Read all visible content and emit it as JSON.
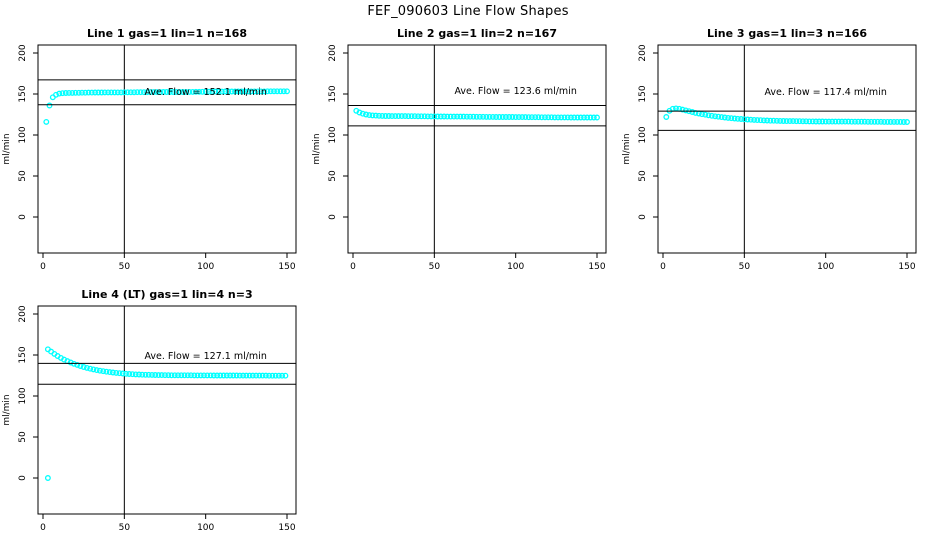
{
  "page_title": "FEF_090603  Line Flow Shapes",
  "colors": {
    "points": "#00FFFF",
    "axis": "#000000",
    "background": "#FFFFFF"
  },
  "chart_data": [
    {
      "type": "scatter",
      "title": "Line 1 gas=1 lin=1 n=168",
      "ylabel": "ml/min",
      "x_ticks": [
        0,
        50,
        100,
        150
      ],
      "y_ticks": [
        0,
        50,
        100,
        150,
        200
      ],
      "xlim": [
        -3,
        155
      ],
      "ylim": [
        0,
        210
      ],
      "vline_x": 50,
      "hlines": [
        167.3,
        136.9
      ],
      "ave_flow": 152.1,
      "ave_flow_label": "Ave. Flow =  152.1  ml/min",
      "label_pos": [
        100,
        152.5
      ],
      "series": {
        "x_start": 2,
        "x_step": 2,
        "values": [
          116,
          136,
          146,
          149,
          150.5,
          151,
          151.2,
          151.3,
          151.4,
          151.5,
          151.5,
          151.6,
          151.6,
          151.7,
          151.7,
          151.8,
          151.8,
          151.8,
          151.9,
          151.9,
          151.9,
          152,
          152,
          152,
          152.1,
          152.1,
          152.1,
          152.1,
          152.2,
          152.2,
          152.2,
          152.2,
          152.3,
          152.3,
          152.3,
          152.3,
          152.4,
          152.4,
          152.4,
          152.5,
          152.5,
          152.5,
          152.5,
          152.6,
          152.6,
          152.6,
          152.7,
          152.7,
          152.7,
          152.8,
          152.8,
          152.8,
          152.9,
          152.9,
          152.9,
          153,
          153,
          153,
          153,
          153.1,
          153.1,
          153.1,
          153.1,
          153.2,
          153.2,
          153.2,
          153.2,
          153.2,
          153.3,
          153.3,
          153.3,
          153.3,
          153.3,
          153.3,
          153.3
        ]
      },
      "extra_points": []
    },
    {
      "type": "scatter",
      "title": "Line 2 gas=1 lin=2 n=167",
      "ylabel": "ml/min",
      "x_ticks": [
        0,
        50,
        100,
        150
      ],
      "y_ticks": [
        0,
        50,
        100,
        150,
        200
      ],
      "xlim": [
        -3,
        155
      ],
      "ylim": [
        0,
        210
      ],
      "vline_x": 50,
      "hlines": [
        136.0,
        111.2
      ],
      "ave_flow": 123.6,
      "ave_flow_label": "Ave. Flow =  123.6  ml/min",
      "label_pos": [
        100,
        153.5
      ],
      "series": {
        "x_start": 2,
        "x_step": 2,
        "values": [
          129.5,
          127.5,
          126,
          125,
          124.3,
          123.9,
          123.6,
          123.4,
          123.3,
          123.2,
          123.2,
          123.1,
          123.1,
          123,
          123,
          123,
          122.9,
          122.9,
          122.9,
          122.8,
          122.8,
          122.8,
          122.7,
          122.7,
          122.7,
          122.6,
          122.6,
          122.6,
          122.5,
          122.5,
          122.5,
          122.4,
          122.4,
          122.4,
          122.3,
          122.3,
          122.3,
          122.2,
          122.2,
          122.2,
          122.1,
          122.1,
          122.1,
          122,
          122,
          122,
          121.9,
          121.9,
          121.9,
          121.8,
          121.8,
          121.8,
          121.8,
          121.7,
          121.7,
          121.7,
          121.7,
          121.6,
          121.6,
          121.6,
          121.6,
          121.5,
          121.5,
          121.5,
          121.5,
          121.5,
          121.4,
          121.4,
          121.4,
          121.4,
          121.4,
          121.3,
          121.3,
          121.3,
          121.3
        ]
      },
      "extra_points": []
    },
    {
      "type": "scatter",
      "title": "Line 3 gas=1 lin=3 n=166",
      "ylabel": "ml/min",
      "x_ticks": [
        0,
        50,
        100,
        150
      ],
      "y_ticks": [
        0,
        50,
        100,
        150,
        200
      ],
      "xlim": [
        -3,
        155
      ],
      "ylim": [
        0,
        210
      ],
      "vline_x": 50,
      "hlines": [
        129.1,
        105.7
      ],
      "ave_flow": 117.4,
      "ave_flow_label": "Ave. Flow =  117.4  ml/min",
      "label_pos": [
        100,
        152.5
      ],
      "series": {
        "x_start": 2,
        "x_step": 2,
        "values": [
          122,
          129.5,
          132,
          132.5,
          132,
          131,
          130,
          129,
          128,
          127,
          126.2,
          125.4,
          124.7,
          124,
          123.4,
          122.8,
          122.3,
          121.8,
          121.3,
          120.9,
          120.5,
          120.1,
          119.8,
          119.5,
          119.2,
          118.9,
          118.7,
          118.4,
          118.2,
          118,
          117.8,
          117.7,
          117.5,
          117.4,
          117.3,
          117.2,
          117.1,
          117,
          116.9,
          116.9,
          116.8,
          116.8,
          116.7,
          116.7,
          116.6,
          116.6,
          116.5,
          116.5,
          116.5,
          116.4,
          116.4,
          116.4,
          116.4,
          116.3,
          116.3,
          116.3,
          116.3,
          116.2,
          116.2,
          116.2,
          116.2,
          116.2,
          116.1,
          116.1,
          116.1,
          116.1,
          116.1,
          116,
          116,
          116,
          116,
          116,
          116,
          115.9,
          115.9
        ]
      },
      "extra_points": []
    },
    {
      "type": "scatter",
      "title": "Line 4 (LT) gas=1 lin=4 n=3",
      "ylabel": "ml/min",
      "x_ticks": [
        0,
        50,
        100,
        150
      ],
      "y_ticks": [
        0,
        50,
        100,
        150,
        200
      ],
      "xlim": [
        -3,
        155
      ],
      "ylim": [
        0,
        210
      ],
      "vline_x": 50,
      "hlines": [
        139.8,
        114.4
      ],
      "ave_flow": 127.1,
      "ave_flow_label": "Ave. Flow =  127.1  ml/min",
      "label_pos": [
        100,
        149
      ],
      "series": {
        "x_start": 3,
        "x_step": 2,
        "values": [
          157,
          154.2,
          151.3,
          148.8,
          146.5,
          144.4,
          142.6,
          140.9,
          139.3,
          137.9,
          136.6,
          135.4,
          134.3,
          133.3,
          132.4,
          131.6,
          130.9,
          130.2,
          129.6,
          129.1,
          128.6,
          128.2,
          127.8,
          127.4,
          127.1,
          126.8,
          126.6,
          126.4,
          126.2,
          126,
          125.9,
          125.8,
          125.7,
          125.6,
          125.5,
          125.5,
          125.4,
          125.4,
          125.3,
          125.3,
          125.3,
          125.2,
          125.2,
          125.2,
          125.2,
          125.1,
          125.1,
          125.1,
          125.1,
          125.1,
          125.1,
          125,
          125,
          125,
          125,
          125,
          125,
          125,
          125,
          124.9,
          124.9,
          124.9,
          124.9,
          124.9,
          124.9,
          124.9,
          124.9,
          124.9,
          124.8,
          124.8,
          124.8,
          124.8,
          124.8,
          124.8
        ]
      },
      "extra_points": [
        [
          3,
          0
        ]
      ]
    }
  ]
}
